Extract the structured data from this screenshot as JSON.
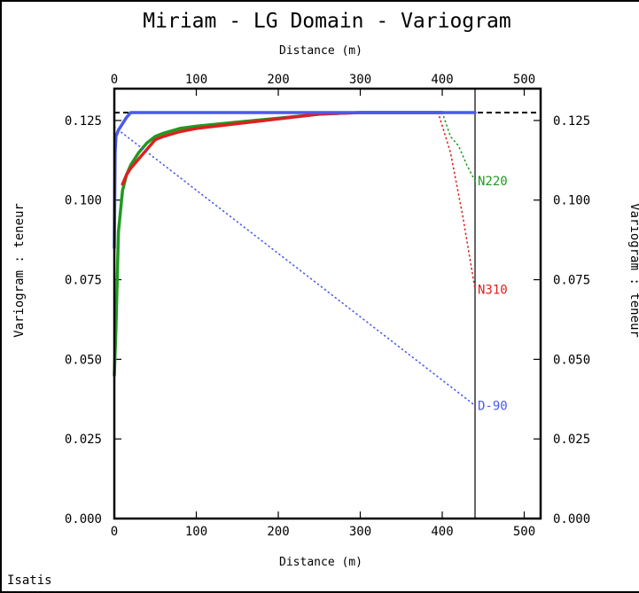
{
  "window": {
    "footer": "Isatis"
  },
  "chart_data": {
    "type": "line",
    "title": "Miriam - LG Domain - Variogram",
    "xlabel": "Distance (m)",
    "ylabel": "Variogram : teneur",
    "xlim": [
      0,
      520
    ],
    "ylim": [
      0,
      0.135
    ],
    "x_ticks": [
      "0",
      "100",
      "200",
      "300",
      "400",
      "500"
    ],
    "y_ticks": [
      "0.000",
      "0.025",
      "0.050",
      "0.075",
      "0.100",
      "0.125"
    ],
    "x_tick_values": [
      0,
      100,
      200,
      300,
      400,
      500
    ],
    "y_tick_values": [
      0,
      0.025,
      0.05,
      0.075,
      0.1,
      0.125
    ],
    "sill": 0.1275,
    "vertical_line_x": 440,
    "series": [
      {
        "name": "N220",
        "color": "#1f9a1f",
        "style": "solid",
        "x": [
          0,
          2,
          5,
          10,
          15,
          20,
          30,
          40,
          50,
          60,
          80,
          100,
          150,
          200,
          250,
          300,
          350,
          400
        ],
        "y": [
          0.045,
          0.06,
          0.09,
          0.103,
          0.108,
          0.111,
          0.115,
          0.118,
          0.12,
          0.121,
          0.1225,
          0.1232,
          0.1245,
          0.1257,
          0.127,
          0.1275,
          0.1275,
          0.1275
        ]
      },
      {
        "name": "N220",
        "color": "#1f9a1f",
        "style": "dotted",
        "x": [
          400,
          410,
          420,
          430,
          440
        ],
        "y": [
          0.1275,
          0.12,
          0.117,
          0.111,
          0.106
        ]
      },
      {
        "name": "N310",
        "color": "#dd2020",
        "style": "solid",
        "x": [
          10,
          15,
          20,
          30,
          40,
          50,
          60,
          80,
          100,
          150,
          200,
          250,
          300,
          350,
          400
        ],
        "y": [
          0.105,
          0.108,
          0.11,
          0.113,
          0.116,
          0.119,
          0.12,
          0.1215,
          0.1225,
          0.124,
          0.1255,
          0.127,
          0.1275,
          0.1275,
          0.1275
        ]
      },
      {
        "name": "N310",
        "color": "#dd2020",
        "style": "dotted",
        "x": [
          395,
          410,
          425,
          440
        ],
        "y": [
          0.1275,
          0.115,
          0.095,
          0.072
        ]
      },
      {
        "name": "D-90",
        "color": "#4a5aee",
        "style": "solid",
        "x": [
          0,
          1,
          2,
          5,
          10,
          15,
          20,
          25,
          440
        ],
        "y": [
          0.085,
          0.115,
          0.12,
          0.122,
          0.124,
          0.126,
          0.1275,
          0.1275,
          0.1275
        ]
      },
      {
        "name": "D-90",
        "color": "#4a5aee",
        "style": "dotted",
        "x": [
          0,
          440
        ],
        "y": [
          0.123,
          0.0355
        ]
      }
    ],
    "labels": [
      {
        "text": "N220",
        "color": "#1f9a1f",
        "x": 440,
        "y": 0.106
      },
      {
        "text": "N310",
        "color": "#dd2020",
        "x": 440,
        "y": 0.072
      },
      {
        "text": "D-90",
        "color": "#4a5aee",
        "x": 440,
        "y": 0.0355
      }
    ]
  }
}
